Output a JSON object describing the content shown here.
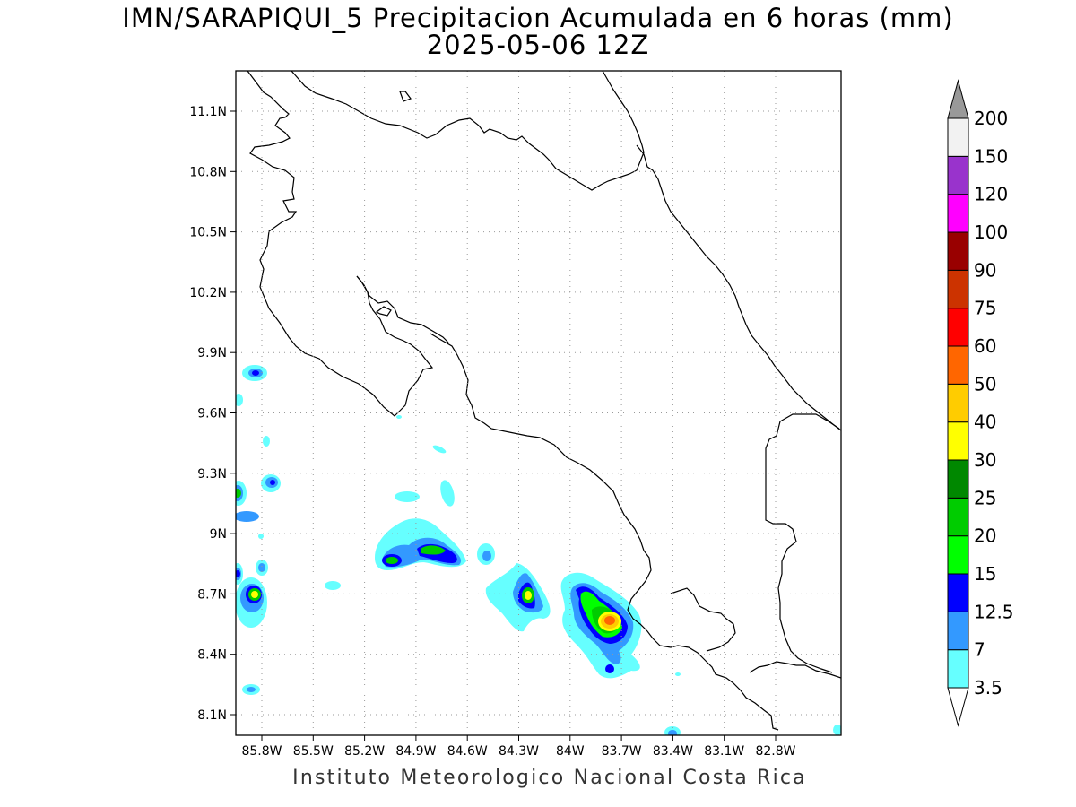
{
  "title": "IMN/SARAPIQUI_5 Precipitacion Acumulada en 6 horas (mm)",
  "subtitle": "2025-05-06 12Z",
  "footer": "Instituto Meteorologico Nacional Costa Rica",
  "map": {
    "lon_ticks": [
      "85.8W",
      "85.5W",
      "85.2W",
      "84.9W",
      "84.6W",
      "84.3W",
      "84W",
      "83.7W",
      "83.4W",
      "83.1W",
      "82.8W"
    ],
    "lat_ticks": [
      "11.1N",
      "10.8N",
      "10.5N",
      "10.2N",
      "9.9N",
      "9.6N",
      "9.3N",
      "9N",
      "8.7N",
      "8.4N",
      "8.1N"
    ],
    "grid": true,
    "lon_range": [
      -86.05,
      -83.1
    ],
    "lat_range": [
      8.0,
      11.3
    ]
  },
  "colorbar": {
    "labels": [
      "3.5",
      "7",
      "12.5",
      "15",
      "20",
      "25",
      "30",
      "40",
      "50",
      "60",
      "75",
      "90",
      "100",
      "120",
      "150",
      "200"
    ],
    "colors": [
      "#ffffff",
      "#66ffff",
      "#3399ff",
      "#0000ff",
      "#00ff00",
      "#00cc00",
      "#008800",
      "#ffff00",
      "#ffcc00",
      "#ff6600",
      "#ff0000",
      "#cc3300",
      "#990000",
      "#ff00ff",
      "#9933cc",
      "#f2f2f2",
      "#999999"
    ]
  }
}
